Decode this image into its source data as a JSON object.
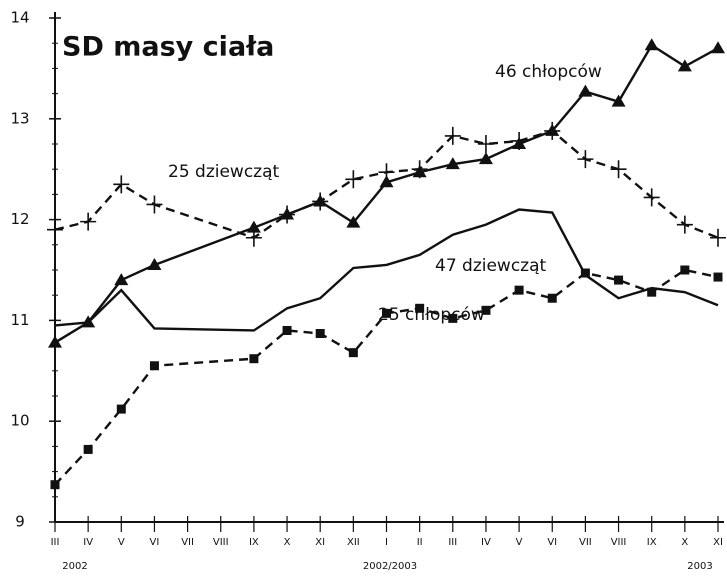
{
  "chart_data": {
    "type": "line",
    "title": "SD masy ciała",
    "categories": [
      "III",
      "IV",
      "V",
      "VI",
      "VII",
      "VIII",
      "IX",
      "X",
      "XI",
      "XII",
      "I",
      "II",
      "III",
      "IV",
      "V",
      "VI",
      "VII",
      "VIII",
      "IX",
      "X",
      "XI"
    ],
    "x_group_labels": [
      "2002",
      "2002/2003",
      "2003"
    ],
    "ylim": [
      9,
      14
    ],
    "yticks": [
      9,
      10,
      11,
      12,
      13,
      14
    ],
    "grid": false,
    "span_gaps": true,
    "series": [
      {
        "name": "46 chłopców",
        "color": "#111111",
        "line_style": "solid",
        "marker": "triangle",
        "values": [
          10.78,
          10.98,
          11.4,
          11.55,
          null,
          null,
          11.92,
          12.05,
          12.18,
          11.97,
          12.37,
          12.47,
          12.55,
          12.6,
          12.75,
          12.88,
          13.27,
          13.17,
          13.73,
          13.52,
          13.7
        ]
      },
      {
        "name": "25 dziewcząt",
        "color": "#111111",
        "line_style": "dashed",
        "marker": "plus",
        "values": [
          11.9,
          11.98,
          12.35,
          12.15,
          null,
          null,
          11.82,
          12.05,
          12.18,
          12.4,
          12.47,
          12.5,
          12.83,
          12.75,
          12.78,
          12.88,
          12.6,
          12.5,
          12.22,
          11.95,
          11.82
        ]
      },
      {
        "name": "47 dziewcząt",
        "color": "#111111",
        "line_style": "solid",
        "marker": "none",
        "values": [
          10.95,
          10.98,
          11.3,
          10.92,
          null,
          null,
          10.9,
          11.12,
          11.22,
          11.52,
          11.55,
          11.65,
          11.85,
          11.95,
          12.1,
          12.07,
          11.45,
          11.22,
          11.32,
          11.28,
          11.15
        ]
      },
      {
        "name": "25 chłopców",
        "color": "#111111",
        "line_style": "dashed",
        "marker": "square",
        "values": [
          9.37,
          9.72,
          10.12,
          10.55,
          null,
          null,
          10.62,
          10.9,
          10.87,
          10.68,
          11.07,
          11.12,
          11.02,
          11.1,
          11.3,
          11.22,
          11.47,
          11.4,
          11.28,
          11.5,
          11.43
        ]
      }
    ]
  }
}
